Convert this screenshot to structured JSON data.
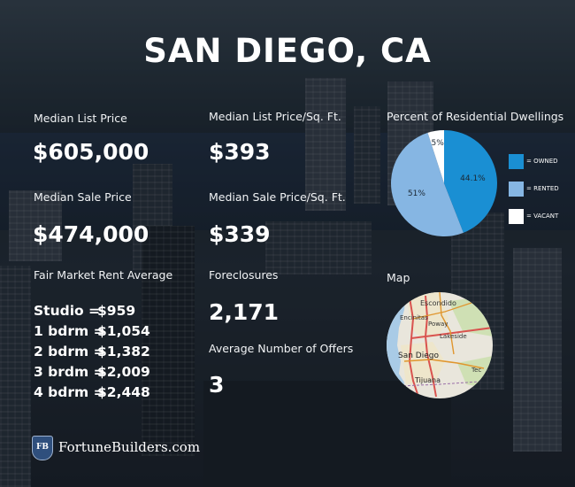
{
  "title": "SAN DIEGO, CA",
  "col1": {
    "median_list_price": {
      "label": "Median List Price",
      "value": "$605,000"
    },
    "median_sale_price": {
      "label": "Median Sale Price",
      "value": "$474,000"
    },
    "fair_market_rent": {
      "label": "Fair Market Rent Average",
      "rows": [
        {
          "key": "Studio =",
          "value": "$959"
        },
        {
          "key": "1 bdrm =",
          "value": "$1,054"
        },
        {
          "key": "2 bdrm =",
          "value": "$1,382"
        },
        {
          "key": "3 brdm =",
          "value": "$2,009"
        },
        {
          "key": "4 bdrm =",
          "value": "$2,448"
        }
      ]
    }
  },
  "col2": {
    "median_list_price_sqft": {
      "label": "Median List Price/Sq. Ft.",
      "value": "$393"
    },
    "median_sale_price_sqft": {
      "label": "Median Sale Price/Sq. Ft.",
      "value": "$339"
    },
    "foreclosures": {
      "label": "Foreclosures",
      "value": "2,171"
    },
    "average_offers": {
      "label": "Average Number of Offers",
      "value": "3"
    }
  },
  "col3": {
    "pie_label": "Percent of Residential Dwellings",
    "map_label": "Map",
    "map_places": [
      "Escondido",
      "Encinitas",
      "Poway",
      "Lakeside",
      "San Diego",
      "Tijuana",
      "Tec"
    ]
  },
  "chart_data": {
    "type": "pie",
    "title": "Percent of Residential Dwellings",
    "slices": [
      {
        "label": "= OWNED",
        "value": 44.1,
        "display": "44.1%",
        "color": "#1a8fd3"
      },
      {
        "label": "= RENTED",
        "value": 51,
        "display": "51%",
        "color": "#86b6e3"
      },
      {
        "label": "= VACANT",
        "value": 5,
        "display": "5%",
        "color": "#ffffff"
      }
    ],
    "legend_position": "right"
  },
  "footer": {
    "badge": "FB",
    "brand": "FortuneBuilders.com"
  },
  "colors": {
    "owned": "#1a8fd3",
    "rented": "#86b6e3",
    "vacant": "#ffffff",
    "logo_badge": "#2f4f7d"
  }
}
